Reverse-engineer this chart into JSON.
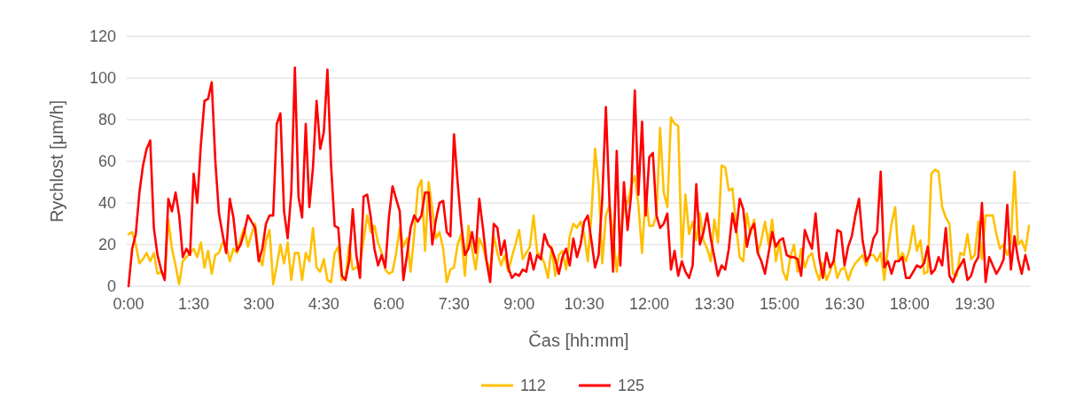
{
  "chart_data": {
    "type": "line",
    "xlabel": "Čas [hh:mm]",
    "ylabel": "Rychlost [μm/h]",
    "categories": [
      "0:00",
      null,
      null,
      null,
      null,
      null,
      null,
      null,
      null,
      null,
      null,
      null,
      null,
      null,
      null,
      null,
      null,
      null,
      "1:30",
      null,
      null,
      null,
      null,
      null,
      null,
      null,
      null,
      null,
      null,
      null,
      null,
      null,
      null,
      null,
      null,
      null,
      "3:00",
      null,
      null,
      null,
      null,
      null,
      null,
      null,
      null,
      null,
      null,
      null,
      null,
      null,
      null,
      null,
      null,
      null,
      "4:30",
      null,
      null,
      null,
      null,
      null,
      null,
      null,
      null,
      null,
      null,
      null,
      null,
      null,
      null,
      null,
      null,
      null,
      "6:00",
      null,
      null,
      null,
      null,
      null,
      null,
      null,
      null,
      null,
      null,
      null,
      null,
      null,
      null,
      null,
      null,
      null,
      "7:30",
      null,
      null,
      null,
      null,
      null,
      null,
      null,
      null,
      null,
      null,
      null,
      null,
      null,
      null,
      null,
      null,
      null,
      "9:00",
      null,
      null,
      null,
      null,
      null,
      null,
      null,
      null,
      null,
      null,
      null,
      null,
      null,
      null,
      null,
      null,
      null,
      "10:30",
      null,
      null,
      null,
      null,
      null,
      null,
      null,
      null,
      null,
      null,
      null,
      null,
      null,
      null,
      null,
      null,
      null,
      "12:00",
      null,
      null,
      null,
      null,
      null,
      null,
      null,
      null,
      null,
      null,
      null,
      null,
      null,
      null,
      null,
      null,
      null,
      "13:30",
      null,
      null,
      null,
      null,
      null,
      null,
      null,
      null,
      null,
      null,
      null,
      null,
      null,
      null,
      null,
      null,
      null,
      "15:00",
      null,
      null,
      null,
      null,
      null,
      null,
      null,
      null,
      null,
      null,
      null,
      null,
      null,
      null,
      null,
      null,
      null,
      "16:30",
      null,
      null,
      null,
      null,
      null,
      null,
      null,
      null,
      null,
      null,
      null,
      null,
      null,
      null,
      null,
      null,
      null,
      "18:00",
      null,
      null,
      null,
      null,
      null,
      null,
      null,
      null,
      null,
      null,
      null,
      null,
      null,
      null,
      null,
      null,
      null,
      "19:30",
      null,
      null,
      null,
      null,
      null,
      null,
      null,
      null,
      null,
      null,
      null,
      null,
      null,
      null,
      null
    ],
    "series": [
      {
        "name": "112",
        "color": "#ffc000",
        "values": [
          25,
          26,
          20,
          11,
          13,
          16,
          12,
          16,
          6,
          7,
          4,
          32,
          18,
          10,
          1,
          12,
          14,
          16,
          18,
          14,
          21,
          9,
          17,
          6,
          15,
          16,
          21,
          20,
          12,
          18,
          16,
          23,
          28,
          19,
          25,
          30,
          15,
          10,
          22,
          27,
          1,
          10,
          20,
          11,
          21,
          3,
          16,
          16,
          3,
          16,
          12,
          28,
          9,
          7,
          13,
          3,
          2,
          16,
          19,
          3,
          4,
          20,
          8,
          9,
          11,
          22,
          34,
          26,
          29,
          21,
          16,
          8,
          6,
          7,
          16,
          28,
          19,
          23,
          7,
          25,
          47,
          51,
          17,
          50,
          37,
          23,
          26,
          18,
          2,
          8,
          9,
          20,
          25,
          5,
          29,
          18,
          8,
          23,
          19,
          12,
          8,
          24,
          16,
          10,
          15,
          7,
          14,
          20,
          27,
          13,
          16,
          19,
          34,
          16,
          15,
          11,
          4,
          19,
          5,
          15,
          17,
          8,
          24,
          30,
          28,
          31,
          25,
          12,
          34,
          66,
          49,
          11,
          34,
          39,
          25,
          7,
          21,
          38,
          40,
          48,
          53,
          39,
          16,
          44,
          29,
          29,
          34,
          76,
          45,
          38,
          81,
          78,
          77,
          14,
          44,
          25,
          31,
          22,
          35,
          22,
          18,
          12,
          32,
          21,
          58,
          57,
          46,
          47,
          29,
          14,
          12,
          35,
          25,
          32,
          16,
          22,
          31,
          20,
          32,
          12,
          21,
          7,
          3,
          14,
          20,
          7,
          18,
          9,
          14,
          16,
          8,
          3,
          11,
          3,
          7,
          13,
          4,
          8,
          9,
          3,
          8,
          11,
          13,
          15,
          10,
          15,
          15,
          12,
          16,
          3,
          18,
          30,
          38,
          12,
          16,
          12,
          18,
          29,
          17,
          22,
          6,
          7,
          54,
          56,
          55,
          38,
          33,
          30,
          6,
          5,
          16,
          15,
          25,
          13,
          15,
          31,
          13,
          34,
          34,
          34,
          25,
          18,
          20,
          15,
          21,
          55,
          20,
          22,
          17,
          29
        ]
      },
      {
        "name": "125",
        "color": "#ff0000",
        "values": [
          0,
          18,
          25,
          45,
          58,
          66,
          70,
          28,
          15,
          8,
          3,
          42,
          36,
          45,
          34,
          14,
          18,
          15,
          54,
          40,
          68,
          89,
          90,
          98,
          60,
          35,
          25,
          16,
          42,
          33,
          17,
          20,
          26,
          34,
          31,
          28,
          12,
          18,
          30,
          34,
          34,
          78,
          83,
          36,
          23,
          45,
          105,
          43,
          33,
          78,
          38,
          57,
          89,
          66,
          74,
          104,
          58,
          29,
          28,
          5,
          3,
          12,
          37,
          15,
          4,
          43,
          44,
          33,
          18,
          10,
          15,
          9,
          33,
          48,
          42,
          36,
          3,
          15,
          28,
          34,
          31,
          34,
          45,
          45,
          20,
          32,
          40,
          41,
          26,
          24,
          73,
          50,
          30,
          15,
          18,
          26,
          16,
          42,
          28,
          12,
          2,
          30,
          28,
          15,
          22,
          9,
          4,
          6,
          5,
          8,
          7,
          16,
          8,
          15,
          13,
          25,
          20,
          18,
          13,
          6,
          14,
          18,
          10,
          23,
          14,
          20,
          31,
          34,
          22,
          9,
          15,
          42,
          86,
          40,
          7,
          65,
          10,
          50,
          27,
          44,
          94,
          44,
          79,
          34,
          62,
          64,
          34,
          28,
          30,
          35,
          8,
          17,
          5,
          12,
          7,
          4,
          10,
          49,
          20,
          26,
          35,
          23,
          14,
          5,
          10,
          8,
          18,
          35,
          26,
          42,
          37,
          19,
          27,
          30,
          16,
          12,
          6,
          16,
          26,
          19,
          22,
          23,
          15,
          14,
          14,
          13,
          5,
          27,
          22,
          18,
          35,
          14,
          4,
          16,
          9,
          12,
          27,
          26,
          10,
          19,
          24,
          34,
          42,
          22,
          12,
          15,
          23,
          26,
          55,
          9,
          12,
          6,
          12,
          12,
          14,
          4,
          4,
          7,
          10,
          9,
          11,
          19,
          6,
          8,
          14,
          10,
          28,
          5,
          2,
          7,
          10,
          13,
          3,
          5,
          11,
          14,
          40,
          2,
          14,
          10,
          6,
          9,
          13,
          39,
          8,
          24,
          13,
          6,
          15,
          8
        ]
      }
    ],
    "ylim": [
      0,
      120
    ],
    "yticks": [
      0,
      20,
      40,
      60,
      80,
      100,
      120
    ],
    "grid": "y",
    "legend": "bottom",
    "marker": "none",
    "line_style": "solid"
  }
}
